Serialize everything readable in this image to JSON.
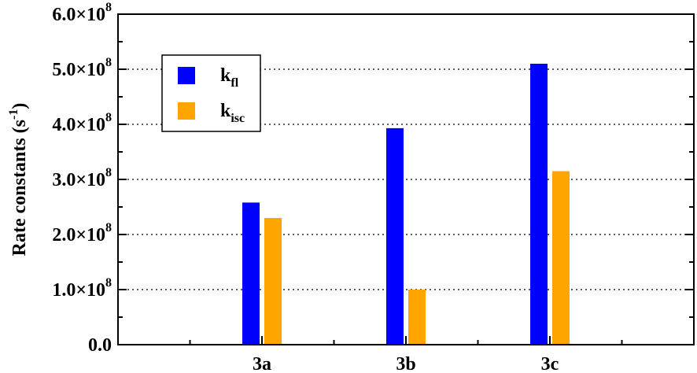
{
  "chart_data": {
    "type": "bar",
    "categories": [
      "3a",
      "3b",
      "3c"
    ],
    "series": [
      {
        "name": "k",
        "subscript": "fl",
        "color": "#0000ff",
        "values": [
          258000000,
          393000000,
          510000000
        ]
      },
      {
        "name": "k",
        "subscript": "isc",
        "color": "#ffa500",
        "values": [
          230000000,
          100000000,
          315000000
        ]
      }
    ],
    "ylabel": {
      "text": "Rate constants (s",
      "sup": "-1",
      "close": ")"
    },
    "ylim": [
      0,
      600000000
    ],
    "yticks": [
      {
        "value": 0,
        "mantissa": "0.0",
        "exp": ""
      },
      {
        "value": 100000000,
        "mantissa": "1.0×10",
        "exp": "8"
      },
      {
        "value": 200000000,
        "mantissa": "2.0×10",
        "exp": "8"
      },
      {
        "value": 300000000,
        "mantissa": "3.0×10",
        "exp": "8"
      },
      {
        "value": 400000000,
        "mantissa": "4.0×10",
        "exp": "8"
      },
      {
        "value": 500000000,
        "mantissa": "5.0×10",
        "exp": "8"
      },
      {
        "value": 600000000,
        "mantissa": "6.0×10",
        "exp": "8"
      }
    ],
    "grid": "horizontal dotted",
    "legend_position": "top-left"
  }
}
